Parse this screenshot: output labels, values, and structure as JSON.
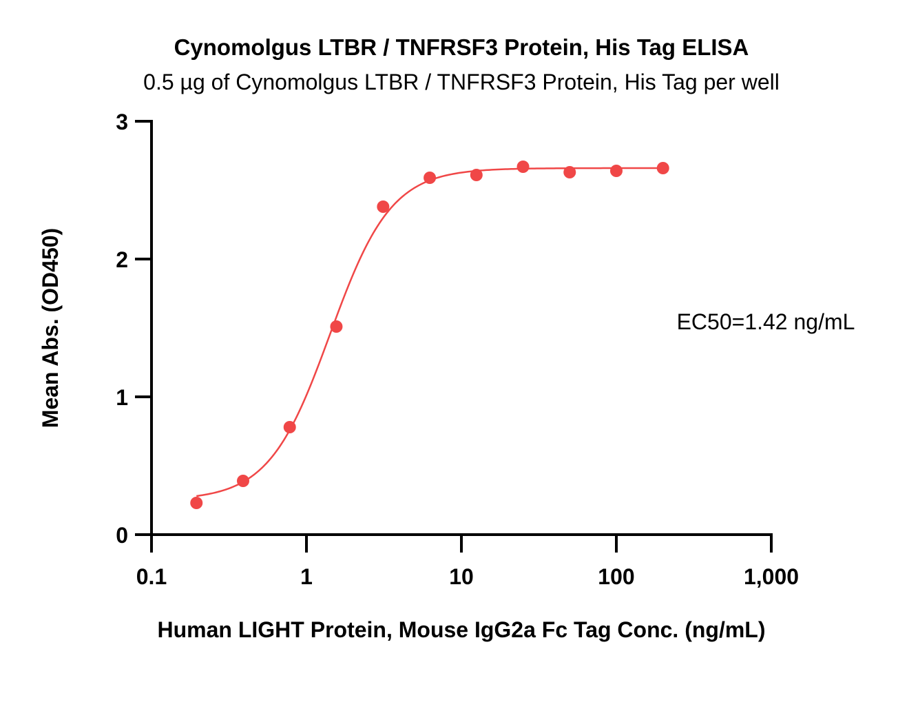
{
  "chart_data": {
    "type": "scatter",
    "title": "Cynomolgus LTBR / TNFRSF3 Protein, His Tag ELISA",
    "subtitle": "0.5 µg of Cynomolgus LTBR / TNFRSF3 Protein, His Tag per well",
    "xlabel": "Human LIGHT Protein, Mouse IgG2a Fc Tag Conc. (ng/mL)",
    "ylabel": "Mean Abs. (OD450)",
    "x_scale": "log",
    "xlim": [
      0.1,
      1000
    ],
    "ylim": [
      0,
      3
    ],
    "x_ticks": [
      0.1,
      1,
      10,
      100,
      1000
    ],
    "x_tick_labels": [
      "0.1",
      "1",
      "10",
      "100",
      "1,000"
    ],
    "y_ticks": [
      0,
      1,
      2,
      3
    ],
    "y_tick_labels": [
      "0",
      "1",
      "2",
      "3"
    ],
    "grid": false,
    "annotation": "EC50=1.42 ng/mL",
    "color": "#f04747",
    "series": [
      {
        "x": [
          0.195,
          0.39,
          0.78,
          1.56,
          3.125,
          6.25,
          12.5,
          25,
          50,
          100,
          200
        ],
        "y": [
          0.23,
          0.39,
          0.78,
          1.51,
          2.38,
          2.59,
          2.61,
          2.67,
          2.63,
          2.64,
          2.66
        ]
      }
    ],
    "fit": {
      "bottom": 0.25,
      "top": 2.66,
      "ec50": 1.42,
      "hill": 2.2
    }
  }
}
